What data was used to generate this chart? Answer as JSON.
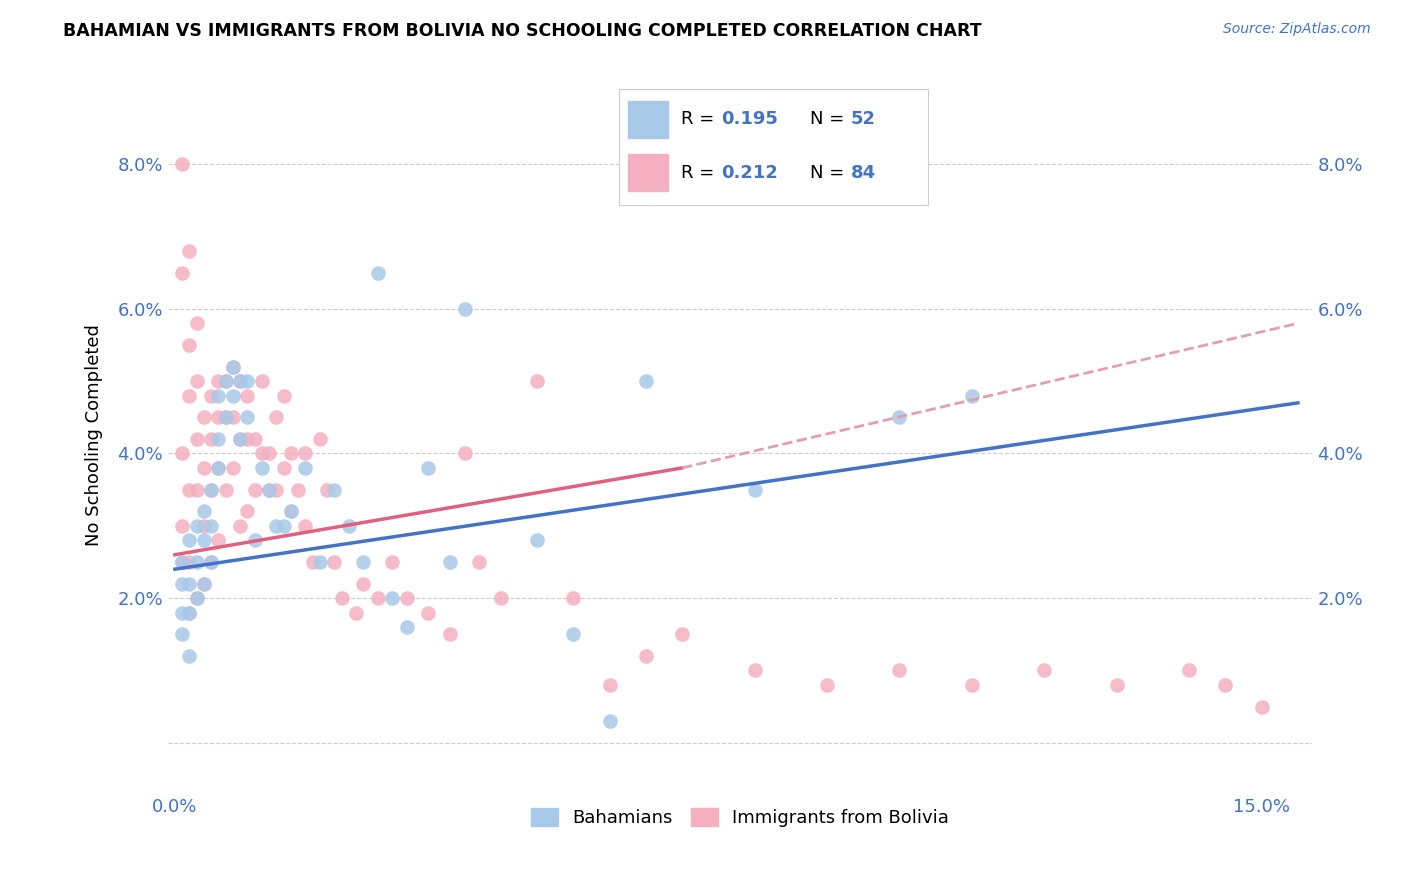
{
  "title": "BAHAMIAN VS IMMIGRANTS FROM BOLIVIA NO SCHOOLING COMPLETED CORRELATION CHART",
  "source": "Source: ZipAtlas.com",
  "xlabel_ticks": [
    0.0,
    0.05,
    0.1,
    0.15
  ],
  "xlabel_labels": [
    "0.0%",
    "",
    "",
    "15.0%"
  ],
  "ylabel_ticks": [
    0.0,
    0.02,
    0.04,
    0.06,
    0.08
  ],
  "ylabel_labels": [
    "",
    "2.0%",
    "4.0%",
    "6.0%",
    "8.0%"
  ],
  "xlim": [
    -0.001,
    0.157
  ],
  "ylim": [
    -0.007,
    0.092
  ],
  "bahamians_color": "#a8c8e8",
  "bolivia_color": "#f4afc0",
  "line_bahamians_color": "#4472c4",
  "line_bolivia_color": "#e06080",
  "line_bolivia_dashed_color": "#e0a0b0",
  "ylabel": "No Schooling Completed",
  "legend_label1": "Bahamians",
  "legend_label2": "Immigrants from Bolivia",
  "bahamians_x": [
    0.001,
    0.001,
    0.001,
    0.001,
    0.002,
    0.002,
    0.002,
    0.002,
    0.003,
    0.003,
    0.003,
    0.004,
    0.004,
    0.004,
    0.005,
    0.005,
    0.005,
    0.006,
    0.006,
    0.006,
    0.007,
    0.007,
    0.008,
    0.008,
    0.009,
    0.009,
    0.01,
    0.01,
    0.011,
    0.012,
    0.013,
    0.014,
    0.015,
    0.016,
    0.018,
    0.02,
    0.022,
    0.024,
    0.026,
    0.028,
    0.03,
    0.032,
    0.035,
    0.038,
    0.04,
    0.05,
    0.055,
    0.06,
    0.065,
    0.08,
    0.1,
    0.11
  ],
  "bahamians_y": [
    0.025,
    0.022,
    0.018,
    0.015,
    0.028,
    0.022,
    0.018,
    0.012,
    0.03,
    0.025,
    0.02,
    0.032,
    0.028,
    0.022,
    0.035,
    0.03,
    0.025,
    0.048,
    0.042,
    0.038,
    0.05,
    0.045,
    0.052,
    0.048,
    0.05,
    0.042,
    0.05,
    0.045,
    0.028,
    0.038,
    0.035,
    0.03,
    0.03,
    0.032,
    0.038,
    0.025,
    0.035,
    0.03,
    0.025,
    0.065,
    0.02,
    0.016,
    0.038,
    0.025,
    0.06,
    0.028,
    0.015,
    0.003,
    0.05,
    0.035,
    0.045,
    0.048
  ],
  "bolivia_x": [
    0.001,
    0.001,
    0.001,
    0.001,
    0.001,
    0.002,
    0.002,
    0.002,
    0.002,
    0.002,
    0.002,
    0.003,
    0.003,
    0.003,
    0.003,
    0.003,
    0.004,
    0.004,
    0.004,
    0.004,
    0.005,
    0.005,
    0.005,
    0.005,
    0.006,
    0.006,
    0.006,
    0.006,
    0.007,
    0.007,
    0.007,
    0.008,
    0.008,
    0.008,
    0.009,
    0.009,
    0.009,
    0.01,
    0.01,
    0.01,
    0.011,
    0.011,
    0.012,
    0.012,
    0.013,
    0.013,
    0.014,
    0.014,
    0.015,
    0.015,
    0.016,
    0.016,
    0.017,
    0.018,
    0.018,
    0.019,
    0.02,
    0.021,
    0.022,
    0.023,
    0.025,
    0.026,
    0.028,
    0.03,
    0.032,
    0.035,
    0.038,
    0.04,
    0.042,
    0.045,
    0.05,
    0.055,
    0.06,
    0.065,
    0.07,
    0.08,
    0.09,
    0.1,
    0.11,
    0.12,
    0.13,
    0.14,
    0.145,
    0.15
  ],
  "bolivia_y": [
    0.08,
    0.065,
    0.04,
    0.03,
    0.025,
    0.068,
    0.055,
    0.048,
    0.035,
    0.025,
    0.018,
    0.058,
    0.05,
    0.042,
    0.035,
    0.02,
    0.045,
    0.038,
    0.03,
    0.022,
    0.048,
    0.042,
    0.035,
    0.025,
    0.05,
    0.045,
    0.038,
    0.028,
    0.05,
    0.045,
    0.035,
    0.052,
    0.045,
    0.038,
    0.05,
    0.042,
    0.03,
    0.048,
    0.042,
    0.032,
    0.042,
    0.035,
    0.05,
    0.04,
    0.04,
    0.035,
    0.045,
    0.035,
    0.048,
    0.038,
    0.04,
    0.032,
    0.035,
    0.04,
    0.03,
    0.025,
    0.042,
    0.035,
    0.025,
    0.02,
    0.018,
    0.022,
    0.02,
    0.025,
    0.02,
    0.018,
    0.015,
    0.04,
    0.025,
    0.02,
    0.05,
    0.02,
    0.008,
    0.012,
    0.015,
    0.01,
    0.008,
    0.01,
    0.008,
    0.01,
    0.008,
    0.01,
    0.008,
    0.005
  ],
  "line_bah_x0": 0.0,
  "line_bah_y0": 0.024,
  "line_bah_x1": 0.155,
  "line_bah_y1": 0.047,
  "line_bol_x0": 0.0,
  "line_bol_y0": 0.026,
  "line_bol_x1": 0.155,
  "line_bol_y1": 0.052,
  "line_bol_dashed_x0": 0.07,
  "line_bol_dashed_y0": 0.038,
  "line_bol_dashed_x1": 0.155,
  "line_bol_dashed_y1": 0.058
}
